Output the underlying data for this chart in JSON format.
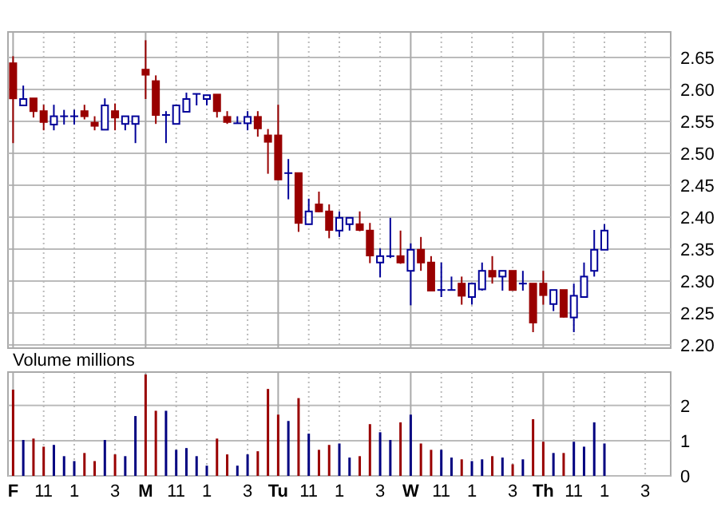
{
  "chart_data": [
    {
      "type": "candlestick",
      "categories": [
        null,
        null,
        null,
        null,
        null,
        null,
        null,
        null,
        null,
        null,
        null,
        null,
        null,
        null,
        null,
        null,
        null,
        null,
        null,
        null,
        null,
        null,
        null,
        null,
        null,
        null,
        null,
        null,
        null,
        null,
        null,
        null,
        null,
        null,
        null,
        null,
        null,
        null,
        null,
        null,
        null,
        null,
        null,
        null,
        null,
        null,
        null,
        null,
        null,
        null,
        null,
        null,
        null,
        null,
        null,
        null,
        null,
        null,
        null,
        null,
        null,
        null,
        null,
        null,
        null
      ],
      "ohlc": [
        [
          2.641,
          2.652,
          2.516,
          2.586
        ],
        [
          2.575,
          2.606,
          2.575,
          2.585
        ],
        [
          2.586,
          2.586,
          2.556,
          2.566
        ],
        [
          2.566,
          2.576,
          2.536,
          2.549
        ],
        [
          2.545,
          2.576,
          2.536,
          2.558
        ],
        [
          2.558,
          2.568,
          2.545,
          2.558
        ],
        [
          2.558,
          2.568,
          2.545,
          2.558
        ],
        [
          2.566,
          2.576,
          2.553,
          2.558
        ],
        [
          2.548,
          2.558,
          2.536,
          2.543
        ],
        [
          2.537,
          2.586,
          2.537,
          2.575
        ],
        [
          2.566,
          2.578,
          2.536,
          2.556
        ],
        [
          2.546,
          2.558,
          2.536,
          2.558
        ],
        [
          2.546,
          2.558,
          2.516,
          2.558
        ],
        [
          2.631,
          2.677,
          2.585,
          2.623
        ],
        [
          2.613,
          2.622,
          2.546,
          2.56
        ],
        [
          2.56,
          2.566,
          2.516,
          2.56
        ],
        [
          2.546,
          2.575,
          2.546,
          2.575
        ],
        [
          2.565,
          2.595,
          2.565,
          2.585
        ],
        [
          2.593,
          2.593,
          2.575,
          2.593
        ],
        [
          2.585,
          2.591,
          2.575,
          2.591
        ],
        [
          2.592,
          2.592,
          2.556,
          2.566
        ],
        [
          2.557,
          2.566,
          2.546,
          2.549
        ],
        [
          2.547,
          2.558,
          2.547,
          2.547
        ],
        [
          2.547,
          2.566,
          2.536,
          2.557
        ],
        [
          2.557,
          2.566,
          2.526,
          2.539
        ],
        [
          2.528,
          2.538,
          2.468,
          2.518
        ],
        [
          2.528,
          2.576,
          2.458,
          2.459
        ],
        [
          2.469,
          2.491,
          2.428,
          2.469
        ],
        [
          2.469,
          2.469,
          2.377,
          2.391
        ],
        [
          2.389,
          2.429,
          2.389,
          2.409
        ],
        [
          2.42,
          2.44,
          2.408,
          2.409
        ],
        [
          2.409,
          2.42,
          2.367,
          2.38
        ],
        [
          2.379,
          2.409,
          2.369,
          2.399
        ],
        [
          2.389,
          2.399,
          2.379,
          2.399
        ],
        [
          2.389,
          2.409,
          2.378,
          2.38
        ],
        [
          2.379,
          2.391,
          2.328,
          2.34
        ],
        [
          2.329,
          2.351,
          2.306,
          2.339
        ],
        [
          2.339,
          2.399,
          2.336,
          2.339
        ],
        [
          2.339,
          2.379,
          2.327,
          2.329
        ],
        [
          2.316,
          2.359,
          2.262,
          2.349
        ],
        [
          2.349,
          2.369,
          2.316,
          2.329
        ],
        [
          2.329,
          2.339,
          2.284,
          2.285
        ],
        [
          2.286,
          2.329,
          2.275,
          2.286
        ],
        [
          2.286,
          2.307,
          2.286,
          2.286
        ],
        [
          2.296,
          2.307,
          2.263,
          2.277
        ],
        [
          2.275,
          2.296,
          2.263,
          2.296
        ],
        [
          2.287,
          2.329,
          2.285,
          2.316
        ],
        [
          2.316,
          2.339,
          2.296,
          2.307
        ],
        [
          2.307,
          2.316,
          2.285,
          2.316
        ],
        [
          2.316,
          2.316,
          2.285,
          2.286
        ],
        [
          2.296,
          2.316,
          2.285,
          2.296
        ],
        [
          2.296,
          2.296,
          2.22,
          2.235
        ],
        [
          2.296,
          2.316,
          2.263,
          2.278
        ],
        [
          2.264,
          2.286,
          2.253,
          2.286
        ],
        [
          2.286,
          2.286,
          2.243,
          2.244
        ],
        [
          2.243,
          2.296,
          2.22,
          2.277
        ],
        [
          2.275,
          2.329,
          2.275,
          2.307
        ],
        [
          2.316,
          2.38,
          2.307,
          2.349
        ],
        [
          2.349,
          2.389,
          2.349,
          2.379
        ],
        null,
        null,
        null,
        null,
        null,
        null
      ],
      "colors": [
        "#990000",
        "#000099",
        "#990000",
        "#990000",
        "#000099",
        "#000099",
        "#000099",
        "#990000",
        "#990000",
        "#000099",
        "#990000",
        "#000099",
        "#000099",
        "#990000",
        "#990000",
        "#000099",
        "#000099",
        "#000099",
        "#000099",
        "#000099",
        "#990000",
        "#990000",
        "#000099",
        "#000099",
        "#990000",
        "#990000",
        "#990000",
        "#000099",
        "#990000",
        "#000099",
        "#990000",
        "#990000",
        "#000099",
        "#000099",
        "#990000",
        "#990000",
        "#000099",
        "#000099",
        "#990000",
        "#000099",
        "#990000",
        "#990000",
        "#000099",
        "#000099",
        "#990000",
        "#000099",
        "#000099",
        "#990000",
        "#000099",
        "#990000",
        "#000099",
        "#990000",
        "#990000",
        "#000099",
        "#990000",
        "#000099",
        "#000099",
        "#000099",
        "#000099",
        null,
        null,
        null,
        null,
        null,
        null
      ],
      "ylim": [
        2.195,
        2.69
      ],
      "yticks": [
        {
          "value": 2.2,
          "label": "2.20"
        },
        {
          "value": 2.25,
          "label": "2.25"
        },
        {
          "value": 2.3,
          "label": "2.30"
        },
        {
          "value": 2.35,
          "label": "2.35"
        },
        {
          "value": 2.4,
          "label": "2.40"
        },
        {
          "value": 2.45,
          "label": "2.45"
        },
        {
          "value": 2.5,
          "label": "2.50"
        },
        {
          "value": 2.55,
          "label": "2.55"
        },
        {
          "value": 2.6,
          "label": "2.60"
        },
        {
          "value": 2.65,
          "label": "2.65"
        }
      ],
      "grid": true,
      "tick_labels": "y"
    },
    {
      "type": "bar",
      "title": "Volume millions",
      "categories": [
        "F",
        null,
        null,
        "11",
        null,
        null,
        "1",
        null,
        null,
        null,
        "3",
        null,
        null,
        "M",
        null,
        null,
        "11",
        null,
        null,
        "1",
        null,
        null,
        null,
        "3",
        null,
        null,
        "Tu",
        null,
        null,
        "11",
        null,
        null,
        "1",
        null,
        null,
        null,
        "3",
        null,
        null,
        "W",
        null,
        null,
        "11",
        null,
        null,
        "1",
        null,
        null,
        null,
        "3",
        null,
        null,
        "Th",
        null,
        null,
        "11",
        null,
        null,
        "1",
        null,
        null,
        null,
        "3",
        null,
        null
      ],
      "values": [
        2.45,
        1.02,
        1.06,
        0.83,
        0.88,
        0.56,
        0.42,
        0.65,
        0.42,
        1.02,
        0.61,
        0.56,
        1.7,
        2.88,
        1.85,
        1.85,
        0.74,
        0.79,
        0.56,
        0.29,
        1.06,
        0.61,
        0.29,
        0.61,
        0.7,
        2.47,
        1.74,
        1.56,
        2.21,
        1.2,
        0.74,
        0.88,
        0.92,
        0.52,
        0.56,
        1.47,
        1.24,
        1.02,
        1.52,
        1.74,
        0.92,
        0.74,
        0.74,
        0.52,
        0.47,
        0.42,
        0.47,
        0.56,
        0.52,
        0.33,
        0.47,
        1.61,
        0.97,
        0.65,
        0.65,
        0.97,
        0.83,
        1.52,
        0.92,
        null,
        null,
        null,
        null,
        null,
        null
      ],
      "colors": [
        "#990000",
        "#000080",
        "#990000",
        "#990000",
        "#000080",
        "#000080",
        "#000080",
        "#990000",
        "#990000",
        "#000080",
        "#990000",
        "#000080",
        "#000080",
        "#990000",
        "#990000",
        "#000080",
        "#000080",
        "#000080",
        "#000080",
        "#000080",
        "#990000",
        "#990000",
        "#000080",
        "#000080",
        "#990000",
        "#990000",
        "#990000",
        "#000080",
        "#990000",
        "#000080",
        "#990000",
        "#990000",
        "#000080",
        "#000080",
        "#990000",
        "#990000",
        "#000080",
        "#000080",
        "#990000",
        "#000080",
        "#990000",
        "#990000",
        "#000080",
        "#000080",
        "#990000",
        "#000080",
        "#000080",
        "#990000",
        "#000080",
        "#990000",
        "#000080",
        "#990000",
        "#990000",
        "#000080",
        "#990000",
        "#000080",
        "#000080",
        "#000080",
        "#000080",
        null,
        null,
        null,
        null,
        null,
        null
      ],
      "ylim": [
        0,
        2.95
      ],
      "yticks": [
        0,
        1,
        2
      ],
      "grid": true
    }
  ]
}
